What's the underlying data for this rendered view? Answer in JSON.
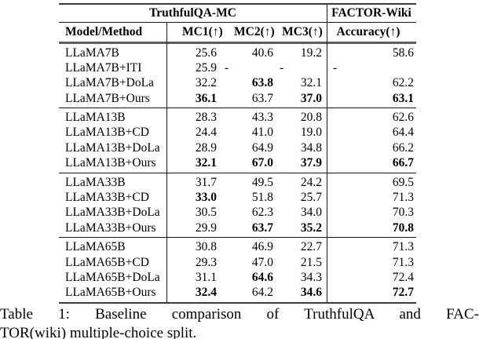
{
  "document": {
    "caption": {
      "line1": "Table 1: Baseline comparison of TruthfulQA and FAC-",
      "line2": "TOR(wiki) multiple-choice split."
    }
  },
  "table": {
    "header": {
      "group_left": "TruthfulQA-MC",
      "group_right": "FACTOR-Wiki",
      "model": "Model/Method",
      "mc1": "MC1(↑)",
      "mc2": "MC2(↑)",
      "mc3": "MC3(↑)",
      "accuracy": "Accuracy(↑)"
    },
    "groups": [
      {
        "rows": [
          {
            "model": "LLaMA7B",
            "mc1": "25.6",
            "mc2": "40.6",
            "mc3": "19.2",
            "acc": "58.6"
          },
          {
            "model": "LLaMA7B+ITI",
            "mc1": "25.9",
            "mc2": "-",
            "mc3": "-",
            "acc": "-"
          },
          {
            "model": "LLaMA7B+DoLa",
            "mc1": "32.2",
            "mc2": "63.8",
            "mc3": "32.1",
            "acc": "62.2"
          },
          {
            "model": "LLaMA7B+Ours",
            "mc1": "36.1",
            "mc2": "63.7",
            "mc3": "37.0",
            "acc": "63.1"
          }
        ]
      },
      {
        "rows": [
          {
            "model": "LLaMA13B",
            "mc1": "28.3",
            "mc2": "43.3",
            "mc3": "20.8",
            "acc": "62.6"
          },
          {
            "model": "LLaMA13B+CD",
            "mc1": "24.4",
            "mc2": "41.0",
            "mc3": "19.0",
            "acc": "64.4"
          },
          {
            "model": "LLaMA13B+DoLa",
            "mc1": "28.9",
            "mc2": "64.9",
            "mc3": "34.8",
            "acc": "66.2"
          },
          {
            "model": "LLaMA13B+Ours",
            "mc1": "32.1",
            "mc2": "67.0",
            "mc3": "37.9",
            "acc": "66.7"
          }
        ]
      },
      {
        "rows": [
          {
            "model": "LLaMA33B",
            "mc1": "31.7",
            "mc2": "49.5",
            "mc3": "24.2",
            "acc": "69.5"
          },
          {
            "model": "LLaMA33B+CD",
            "mc1": "33.0",
            "mc2": "51.8",
            "mc3": "25.7",
            "acc": "71.3"
          },
          {
            "model": "LLaMA33B+DoLa",
            "mc1": "30.5",
            "mc2": "62.3",
            "mc3": "34.0",
            "acc": "70.3"
          },
          {
            "model": "LLaMA33B+Ours",
            "mc1": "29.9",
            "mc2": "63.7",
            "mc3": "35.2",
            "acc": "70.8"
          }
        ]
      },
      {
        "rows": [
          {
            "model": "LLaMA65B",
            "mc1": "30.8",
            "mc2": "46.9",
            "mc3": "22.7",
            "acc": "71.3"
          },
          {
            "model": "LLaMA65B+CD",
            "mc1": "29.3",
            "mc2": "47.0",
            "mc3": "21.5",
            "acc": "71.3"
          },
          {
            "model": "LLaMA65B+DoLa",
            "mc1": "31.1",
            "mc2": "64.6",
            "mc3": "34.3",
            "acc": "72.4"
          },
          {
            "model": "LLaMA65B+Ours",
            "mc1": "32.4",
            "mc2": "64.2",
            "mc3": "34.6",
            "acc": "72.7"
          }
        ]
      }
    ]
  }
}
